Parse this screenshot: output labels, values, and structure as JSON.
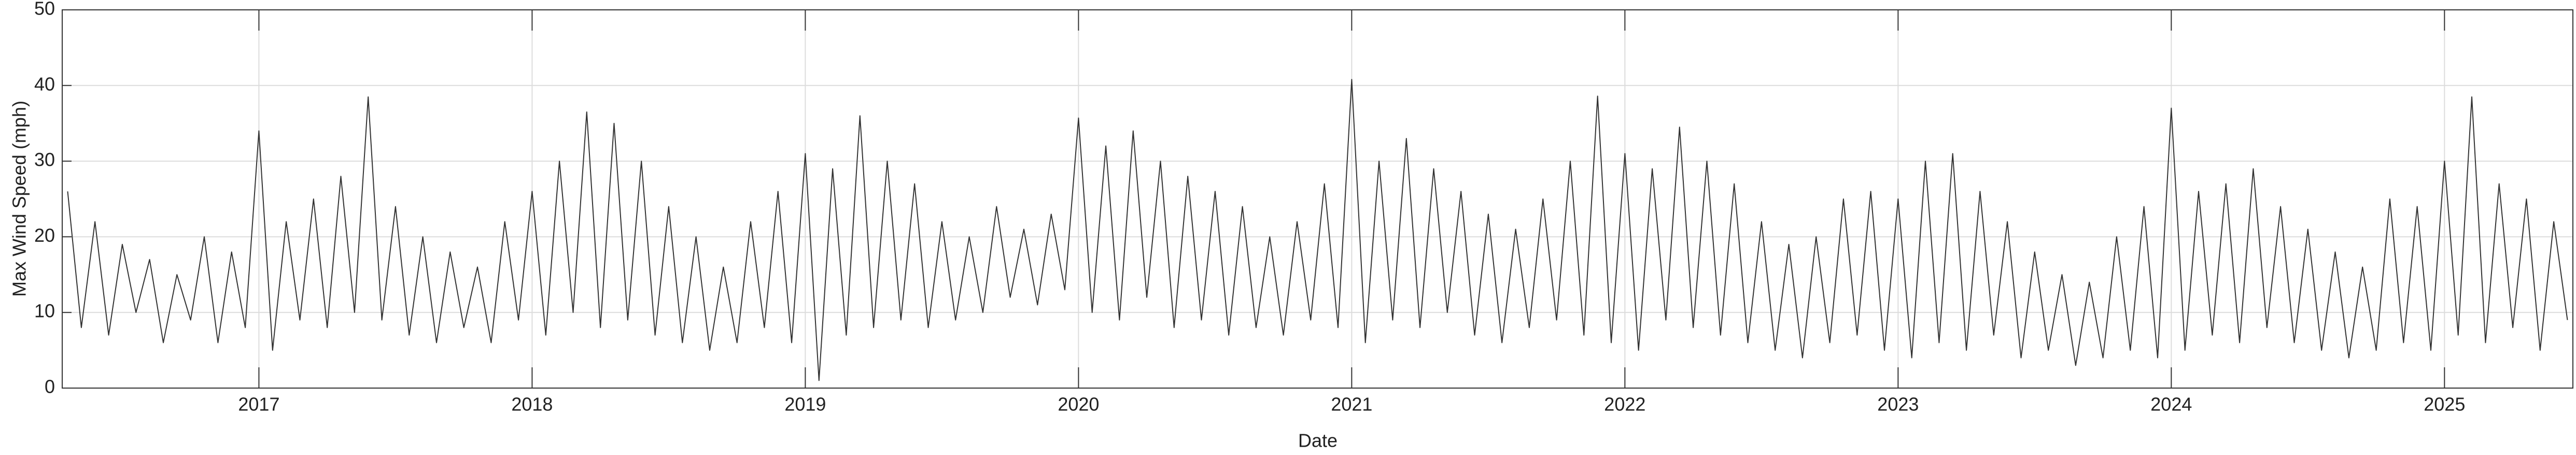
{
  "chart_data": {
    "type": "line",
    "xlabel": "Date",
    "ylabel": "Max Wind Speed (mph)",
    "xlim": [
      2016.28,
      2025.47
    ],
    "xticks": [
      2017,
      2018,
      2019,
      2020,
      2021,
      2022,
      2023,
      2024,
      2025
    ],
    "ylim": [
      0,
      50
    ],
    "yticks": [
      0,
      10,
      20,
      30,
      40,
      50
    ],
    "grid": true,
    "series": [
      {
        "name": "Max Wind Speed",
        "color": "#333333",
        "x": [
          2016.3,
          2016.35,
          2016.4,
          2016.45,
          2016.5,
          2016.55,
          2016.6,
          2016.65,
          2016.7,
          2016.75,
          2016.8,
          2016.85,
          2016.9,
          2016.95,
          2017.0,
          2017.05,
          2017.1,
          2017.15,
          2017.2,
          2017.25,
          2017.3,
          2017.35,
          2017.4,
          2017.45,
          2017.5,
          2017.55,
          2017.6,
          2017.65,
          2017.7,
          2017.75,
          2017.8,
          2017.85,
          2017.9,
          2017.95,
          2018.0,
          2018.05,
          2018.1,
          2018.15,
          2018.2,
          2018.25,
          2018.3,
          2018.35,
          2018.4,
          2018.45,
          2018.5,
          2018.55,
          2018.6,
          2018.65,
          2018.7,
          2018.75,
          2018.8,
          2018.85,
          2018.9,
          2018.95,
          2019.0,
          2019.05,
          2019.1,
          2019.15,
          2019.2,
          2019.25,
          2019.3,
          2019.35,
          2019.4,
          2019.45,
          2019.5,
          2019.55,
          2019.6,
          2019.65,
          2019.7,
          2019.75,
          2019.8,
          2019.85,
          2019.9,
          2019.95,
          2020.0,
          2020.05,
          2020.1,
          2020.15,
          2020.2,
          2020.25,
          2020.3,
          2020.35,
          2020.4,
          2020.45,
          2020.5,
          2020.55,
          2020.6,
          2020.65,
          2020.7,
          2020.75,
          2020.8,
          2020.85,
          2020.9,
          2020.95,
          2021.0,
          2021.05,
          2021.1,
          2021.15,
          2021.2,
          2021.25,
          2021.3,
          2021.35,
          2021.4,
          2021.45,
          2021.5,
          2021.55,
          2021.6,
          2021.65,
          2021.7,
          2021.75,
          2021.8,
          2021.85,
          2021.9,
          2021.95,
          2022.0,
          2022.05,
          2022.1,
          2022.15,
          2022.2,
          2022.25,
          2022.3,
          2022.35,
          2022.4,
          2022.45,
          2022.5,
          2022.55,
          2022.6,
          2022.65,
          2022.7,
          2022.75,
          2022.8,
          2022.85,
          2022.9,
          2022.95,
          2023.0,
          2023.05,
          2023.1,
          2023.15,
          2023.2,
          2023.25,
          2023.3,
          2023.35,
          2023.4,
          2023.45,
          2023.5,
          2023.55,
          2023.6,
          2023.65,
          2023.7,
          2023.75,
          2023.8,
          2023.85,
          2023.9,
          2023.95,
          2024.0,
          2024.05,
          2024.1,
          2024.15,
          2024.2,
          2024.25,
          2024.3,
          2024.35,
          2024.4,
          2024.45,
          2024.5,
          2024.55,
          2024.6,
          2024.65,
          2024.7,
          2024.75,
          2024.8,
          2024.85,
          2024.9,
          2024.95,
          2025.0,
          2025.05,
          2025.1,
          2025.15,
          2025.2,
          2025.25,
          2025.3,
          2025.35,
          2025.4,
          2025.45
        ],
        "values": [
          26,
          8,
          22,
          7,
          19,
          10,
          17,
          6,
          15,
          9,
          20,
          6,
          18,
          8,
          34,
          5,
          22,
          9,
          25,
          8,
          28,
          10,
          38.5,
          9,
          24,
          7,
          20,
          6,
          18,
          8,
          16,
          6,
          22,
          9,
          26,
          7,
          30,
          10,
          36.5,
          8,
          35,
          9,
          30,
          7,
          24,
          6,
          20,
          5,
          16,
          6,
          22,
          8,
          26,
          6,
          31,
          1,
          29,
          7,
          36,
          8,
          30,
          9,
          27,
          8,
          22,
          9,
          20,
          10,
          24,
          12,
          21,
          11,
          23,
          13,
          35.7,
          10,
          32,
          9,
          34,
          12,
          30,
          8,
          28,
          9,
          26,
          7,
          24,
          8,
          20,
          7,
          22,
          9,
          27,
          8,
          40.8,
          6,
          30,
          9,
          33,
          8,
          29,
          10,
          26,
          7,
          23,
          6,
          21,
          8,
          25,
          9,
          30,
          7,
          38.6,
          6,
          31,
          5,
          29,
          9,
          34.5,
          8,
          30,
          7,
          27,
          6,
          22,
          5,
          19,
          4,
          20,
          6,
          25,
          7,
          26,
          5,
          25,
          4,
          30,
          6,
          31,
          5,
          26,
          7,
          22,
          4,
          18,
          5,
          15,
          3,
          14,
          4,
          20,
          5,
          24,
          4,
          37,
          5,
          26,
          7,
          27,
          6,
          29,
          8,
          24,
          6,
          21,
          5,
          18,
          4,
          16,
          5,
          25,
          6,
          24,
          5,
          30,
          7,
          38.5,
          6,
          27,
          8,
          25,
          5,
          22,
          9
        ]
      }
    ]
  }
}
